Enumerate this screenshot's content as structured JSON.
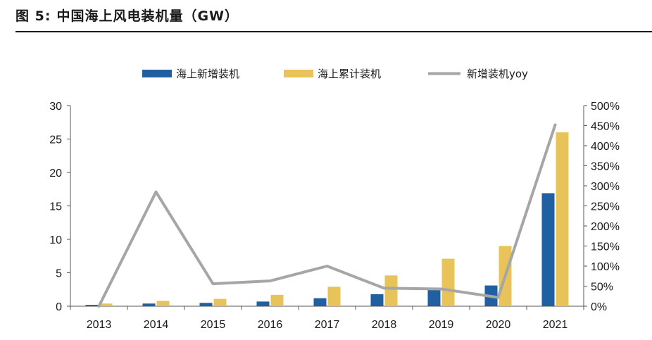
{
  "header": {
    "figure_label": "图 5:",
    "title": "中国海上风电装机量（GW）"
  },
  "colors": {
    "new_bar": "#1f5fa2",
    "cum_bar": "#e8c35a",
    "yoy_line": "#a6a6a6",
    "axis": "#555555"
  },
  "chart_data": {
    "type": "bar",
    "title": "中国海上风电装机量（GW）",
    "categories": [
      "2013",
      "2014",
      "2015",
      "2016",
      "2017",
      "2018",
      "2019",
      "2020",
      "2021"
    ],
    "series": [
      {
        "name": "海上新增装机",
        "type": "bar",
        "axis": "left",
        "values": [
          0.2,
          0.4,
          0.5,
          0.7,
          1.2,
          1.8,
          2.6,
          3.1,
          16.9
        ]
      },
      {
        "name": "海上累计装机",
        "type": "bar",
        "axis": "left",
        "values": [
          0.4,
          0.8,
          1.1,
          1.7,
          2.9,
          4.6,
          7.1,
          9.0,
          26.0
        ]
      },
      {
        "name": "新增装机yoy",
        "type": "line",
        "axis": "right",
        "values": [
          0,
          285,
          56,
          63,
          100,
          45,
          43,
          22,
          452
        ]
      }
    ],
    "left_axis": {
      "ylim": [
        0,
        30
      ],
      "ticks": [
        0,
        5,
        10,
        15,
        20,
        25,
        30
      ]
    },
    "right_axis": {
      "ylim": [
        0,
        500
      ],
      "unit": "%",
      "ticks": [
        0,
        50,
        100,
        150,
        200,
        250,
        300,
        350,
        400,
        450,
        500
      ],
      "tick_labels": [
        "0%",
        "50%",
        "100%",
        "150%",
        "200%",
        "250%",
        "300%",
        "350%",
        "400%",
        "450%",
        "500%"
      ]
    },
    "legend_position": "top-center",
    "grid": false
  }
}
